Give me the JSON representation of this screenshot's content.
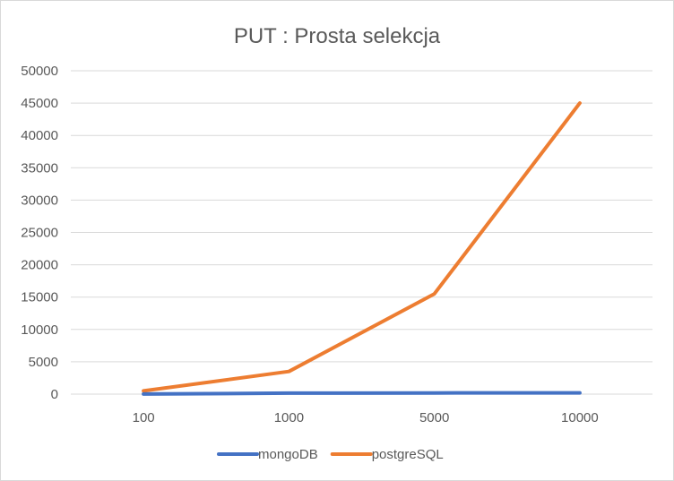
{
  "chart_data": {
    "type": "line",
    "title": "PUT : Prosta selekcja",
    "xlabel": "",
    "ylabel": "",
    "categories": [
      "100",
      "1000",
      "5000",
      "10000"
    ],
    "yticks": [
      "0",
      "5000",
      "10000",
      "15000",
      "20000",
      "25000",
      "30000",
      "35000",
      "40000",
      "45000",
      "50000"
    ],
    "ylim": [
      0,
      50000
    ],
    "grid": true,
    "legend_position": "bottom",
    "series": [
      {
        "name": "mongoDB",
        "color": "#4472c4",
        "values": [
          20,
          150,
          180,
          200
        ]
      },
      {
        "name": "postgreSQL",
        "color": "#ed7d31",
        "values": [
          500,
          3500,
          15500,
          45000
        ]
      }
    ]
  }
}
